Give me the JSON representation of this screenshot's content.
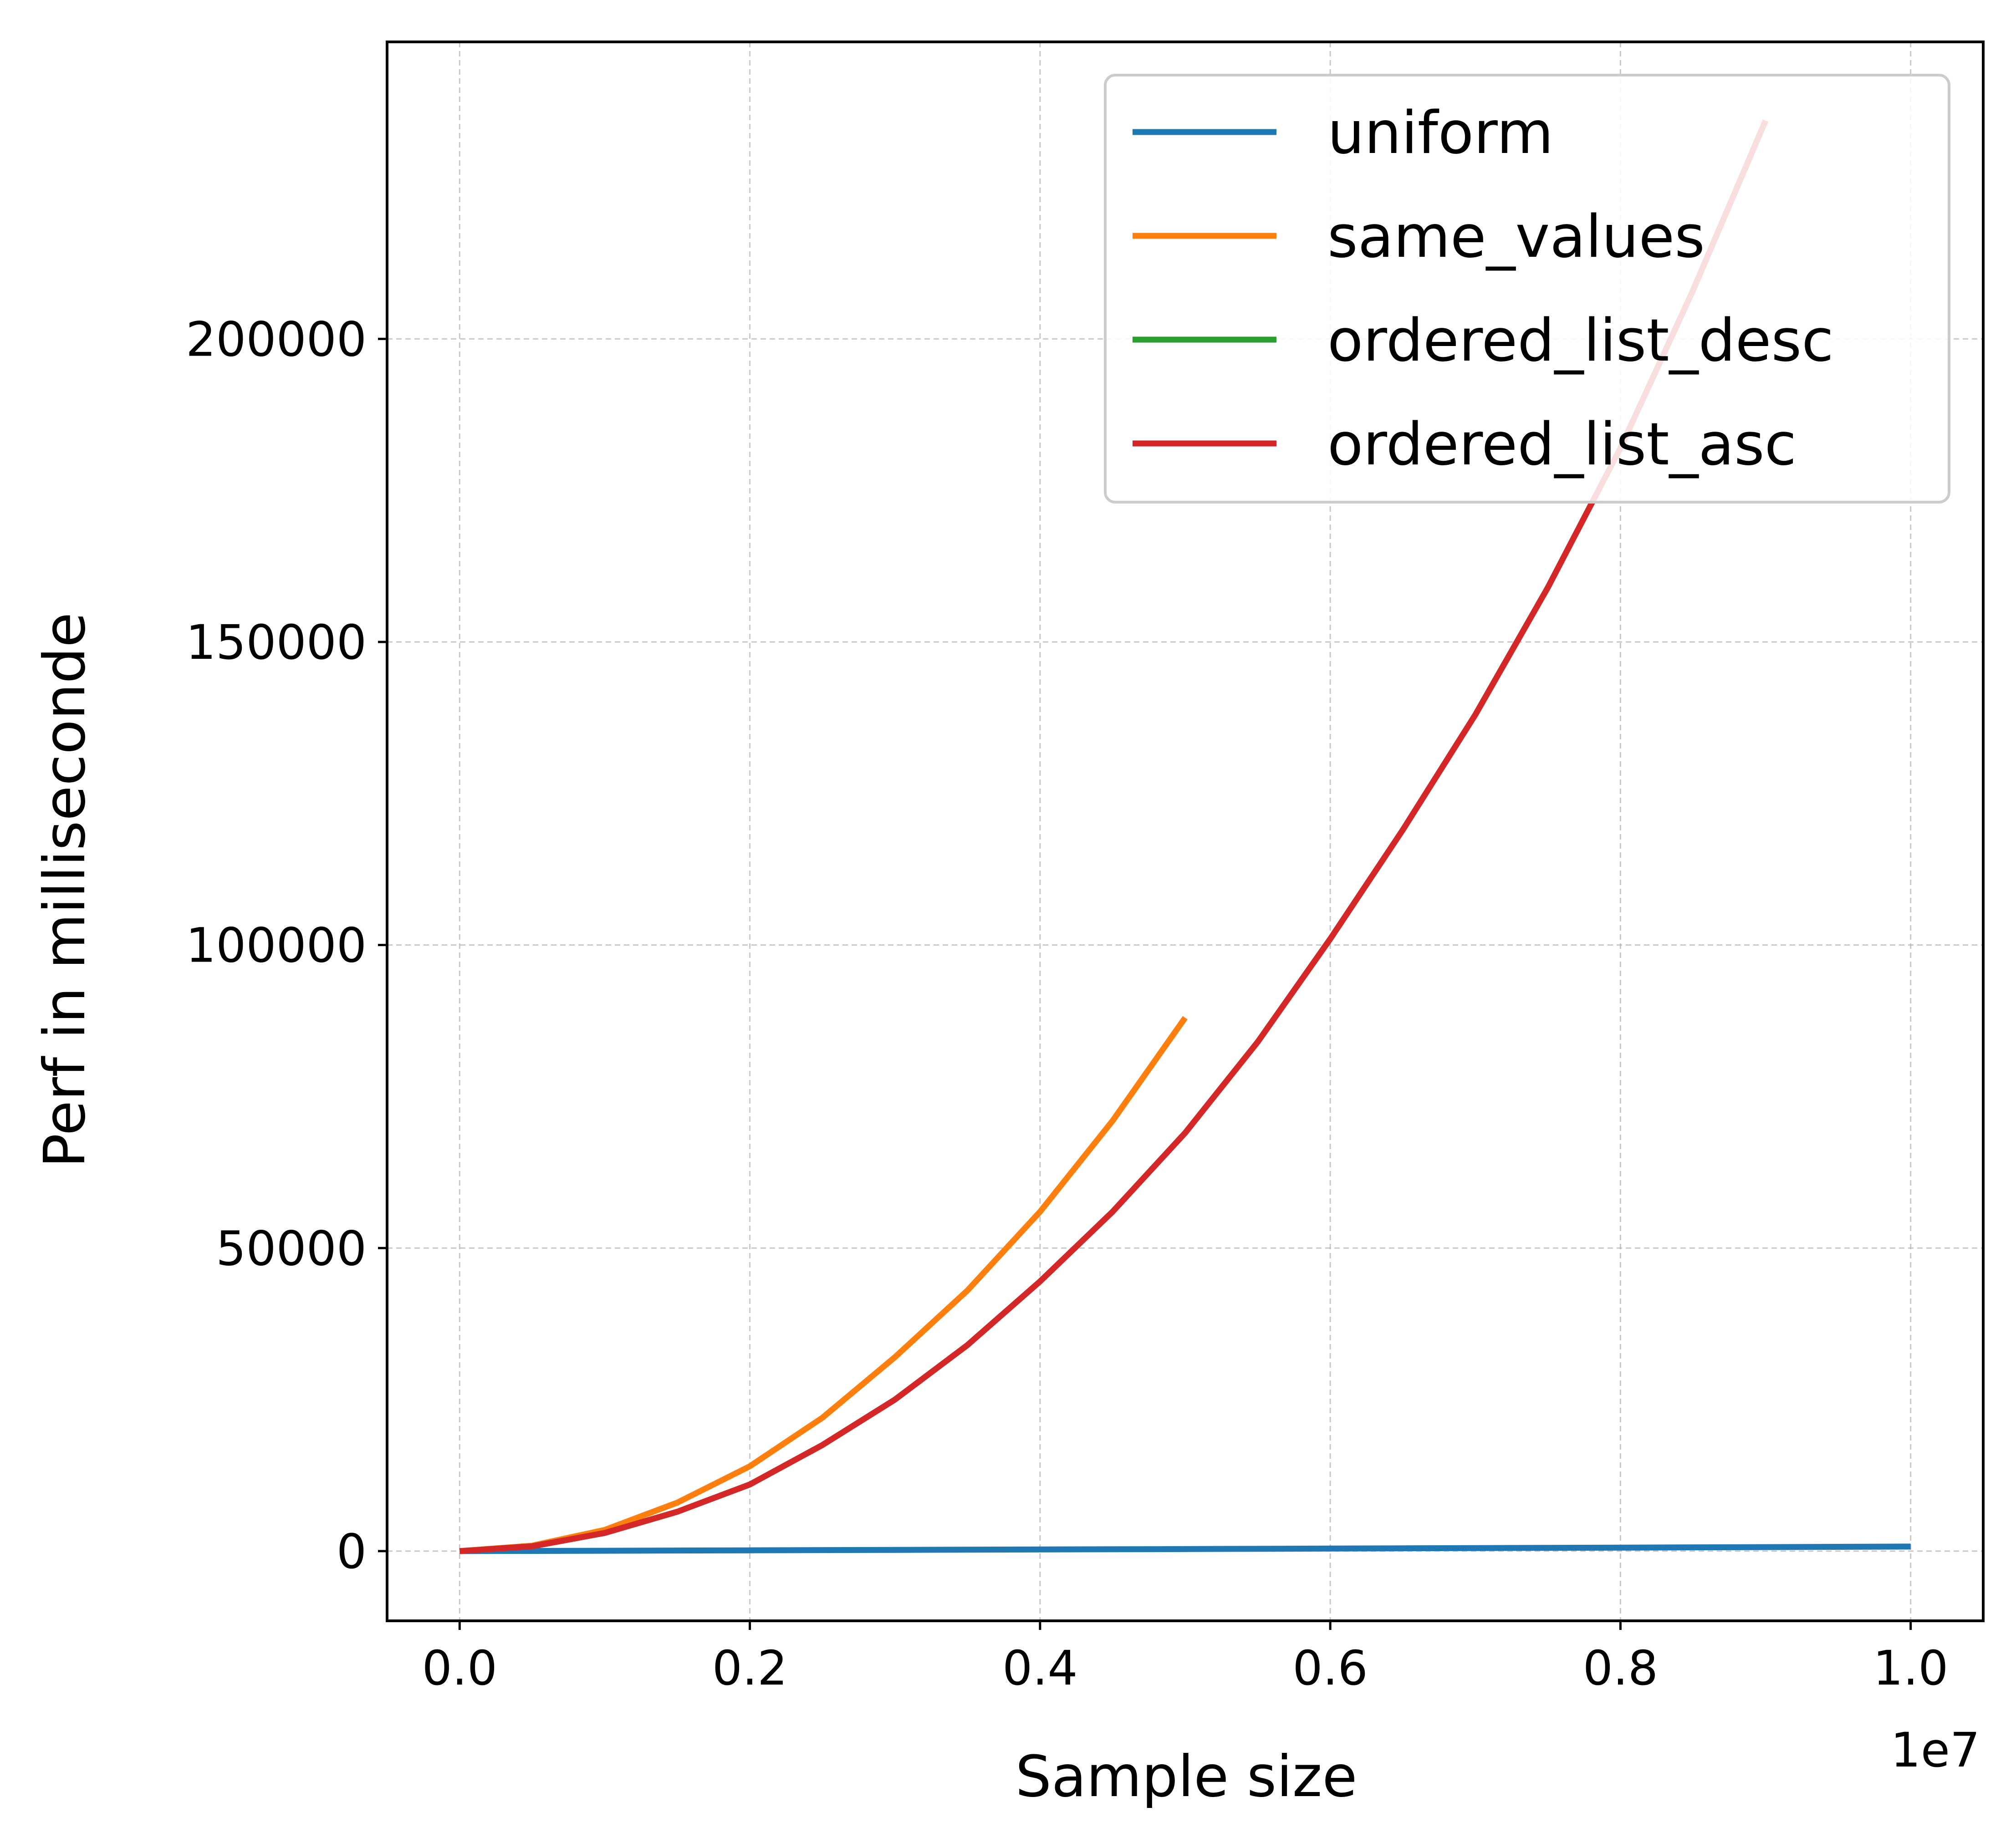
{
  "chart_data": {
    "type": "line",
    "title": "",
    "xlabel": "Sample size",
    "ylabel": "Perf in milliseconde",
    "x_offset_label": "1e7",
    "xlim": [
      -0.05,
      1.05
    ],
    "ylim": [
      -11500,
      249000
    ],
    "x_ticks": [
      0.0,
      0.2,
      0.4,
      0.6,
      0.8,
      1.0
    ],
    "x_tick_labels": [
      "0.0",
      "0.2",
      "0.4",
      "0.6",
      "0.8",
      "1.0"
    ],
    "y_ticks": [
      0,
      50000,
      100000,
      150000,
      200000
    ],
    "y_tick_labels": [
      "0",
      "50000",
      "100000",
      "150000",
      "200000"
    ],
    "grid": true,
    "legend_position": "top-right",
    "series": [
      {
        "name": "uniform",
        "color": "#1f77b4",
        "x": [
          0.0,
          0.1,
          0.2,
          0.3,
          0.4,
          0.5,
          0.6,
          0.7,
          0.8,
          0.9,
          1.0
        ],
        "y": [
          0,
          60,
          130,
          200,
          270,
          340,
          420,
          500,
          580,
          660,
          750
        ]
      },
      {
        "name": "same_values",
        "color": "#ff7f0e",
        "x": [
          0.0,
          0.05,
          0.1,
          0.15,
          0.2,
          0.25,
          0.3,
          0.35,
          0.4,
          0.45,
          0.5
        ],
        "y": [
          0,
          900,
          3500,
          8000,
          14000,
          22000,
          32000,
          43000,
          56000,
          71000,
          88000
        ]
      },
      {
        "name": "ordered_list_desc",
        "color": "#2ca02c",
        "x": [
          0.0,
          0.05,
          0.1,
          0.15,
          0.2,
          0.25,
          0.3,
          0.35,
          0.4,
          0.45,
          0.5,
          0.55,
          0.6,
          0.65,
          0.7,
          0.75,
          0.8,
          0.85,
          0.9
        ],
        "y": [
          0,
          800,
          3000,
          6500,
          11000,
          17500,
          25000,
          34000,
          44500,
          56000,
          69000,
          84000,
          101000,
          119000,
          138000,
          159000,
          182000,
          208000,
          236000
        ]
      },
      {
        "name": "ordered_list_asc",
        "color": "#d62728",
        "x": [
          0.0,
          0.05,
          0.1,
          0.15,
          0.2,
          0.25,
          0.3,
          0.35,
          0.4,
          0.45,
          0.5,
          0.55,
          0.6,
          0.65,
          0.7,
          0.75,
          0.8,
          0.85,
          0.9
        ],
        "y": [
          0,
          800,
          3000,
          6500,
          11000,
          17500,
          25000,
          34000,
          44500,
          56000,
          69000,
          84000,
          101000,
          119000,
          138000,
          159000,
          182000,
          208000,
          236000
        ]
      }
    ]
  }
}
